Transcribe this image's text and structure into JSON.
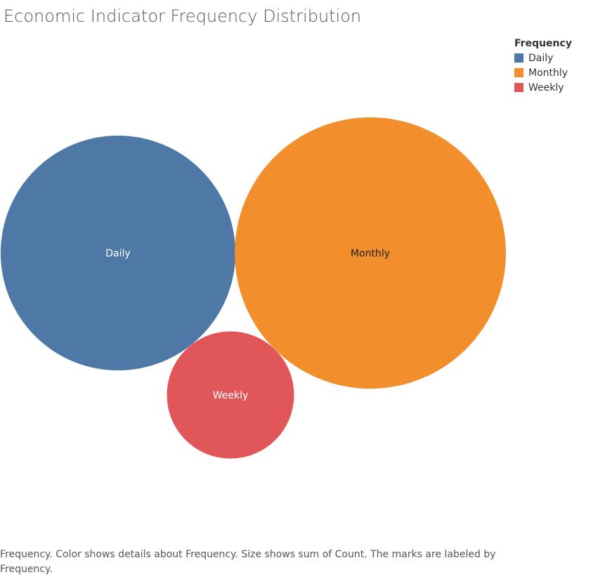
{
  "title": "Economic Indicator Frequency Distribution",
  "legend": {
    "title": "Frequency",
    "items": [
      {
        "label": "Daily",
        "color": "#4e79a7"
      },
      {
        "label": "Monthly",
        "color": "#f28e2b"
      },
      {
        "label": "Weekly",
        "color": "#e15759"
      }
    ]
  },
  "caption": "Frequency.  Color shows details about Frequency.  Size shows sum of Count.  The marks are labeled by Frequency.",
  "chart_data": {
    "type": "bubble",
    "title": "Economic Indicator Frequency Distribution",
    "size_field": "Count",
    "series": [
      {
        "name": "Daily",
        "relative_size": 0.75,
        "color": "#4e79a7",
        "label_color": "#ffffff"
      },
      {
        "name": "Monthly",
        "relative_size": 1.0,
        "color": "#f28e2b",
        "label_color": "#222222"
      },
      {
        "name": "Weekly",
        "relative_size": 0.22,
        "color": "#e15759",
        "label_color": "#ffffff"
      }
    ]
  }
}
